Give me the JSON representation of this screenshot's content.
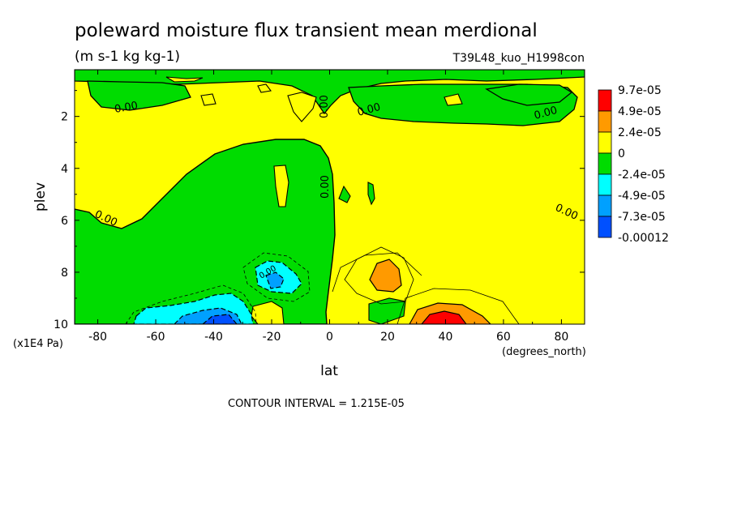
{
  "chart_data": {
    "type": "heatmap",
    "title": "poleward moisture flux transient mean merdional",
    "subtitle": "(m s-1 kg kg-1)",
    "run_label": "T39L48_kuo_H1998con",
    "xlabel": "lat",
    "x_units": "(degrees_north)",
    "ylabel": "plev",
    "y_units": "(x1E4 Pa)",
    "xlim": [
      -88,
      88
    ],
    "ylim": [
      10,
      0.2
    ],
    "x_ticks": [
      "-80",
      "-60",
      "-40",
      "-20",
      "0",
      "20",
      "40",
      "60",
      "80"
    ],
    "y_ticks": [
      "2",
      "4",
      "6",
      "8",
      "10"
    ],
    "contour_interval_text": "CONTOUR INTERVAL = 1.215E-05",
    "contour_labels": [
      "0.00",
      "0.00",
      "0.00",
      "0.00",
      "0.00",
      "0.00",
      "0.00",
      "0.00"
    ],
    "colorbar": {
      "labels": [
        "9.7e-05",
        "4.9e-05",
        "2.4e-05",
        "0",
        "-2.4e-05",
        "-4.9e-05",
        "-7.3e-05",
        "-0.00012"
      ],
      "colors": [
        "#ff0000",
        "#ff9a00",
        "#ffff00",
        "#00dc00",
        "#00ffff",
        "#00a0ff",
        "#0050ff"
      ]
    },
    "grid": false,
    "legend_position": "right"
  }
}
